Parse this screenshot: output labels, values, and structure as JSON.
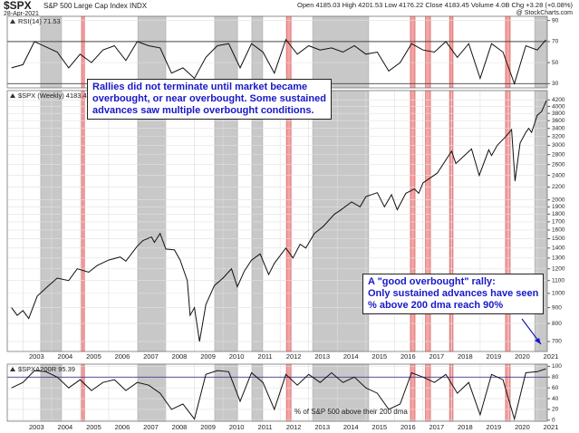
{
  "header": {
    "symbol": "$SPX",
    "name": "S&P 500 Large Cap Index INDX",
    "date": "28-Apr-2021",
    "quote": "Open 4185.03 High 4201.53 Low 4176.22 Close 4183.45 Volume 4.0B Chg +3.28 (+0.08%)",
    "source": "@ StockCharts.com"
  },
  "annotations": [
    {
      "lines": [
        "Rallies did not terminate until market became",
        "overbought, or near overbought. Some sustained",
        "advances saw multiple overbought conditions."
      ]
    },
    {
      "lines": [
        "A \"good overbought\" rally:",
        "Only sustained advances have seen",
        "% above 200 dma reach 90%"
      ]
    }
  ],
  "chart_data": [
    {
      "type": "line",
      "title": "RSI(14) 71.53",
      "color": "#111111",
      "xlim": [
        2002.45,
        2021.35
      ],
      "ylim": [
        26,
        94
      ],
      "yticks": [
        30,
        50,
        70,
        90
      ],
      "reference_lines": [
        70,
        30
      ],
      "x": [
        2002.6,
        2003.0,
        2003.4,
        2003.8,
        2004.2,
        2004.6,
        2005.0,
        2005.4,
        2005.8,
        2006.2,
        2006.6,
        2007.0,
        2007.4,
        2007.8,
        2008.2,
        2008.6,
        2009.0,
        2009.4,
        2009.8,
        2010.2,
        2010.6,
        2011.0,
        2011.4,
        2011.8,
        2012.2,
        2012.6,
        2013.0,
        2013.4,
        2013.8,
        2014.2,
        2014.6,
        2015.0,
        2015.4,
        2015.8,
        2016.2,
        2016.6,
        2017.0,
        2017.4,
        2017.8,
        2018.2,
        2018.6,
        2019.0,
        2019.4,
        2019.8,
        2020.2,
        2020.6,
        2021.0,
        2021.3
      ],
      "values": [
        45,
        48,
        70,
        65,
        60,
        45,
        58,
        50,
        62,
        66,
        52,
        70,
        66,
        64,
        40,
        45,
        35,
        55,
        66,
        68,
        45,
        68,
        60,
        40,
        72,
        58,
        66,
        62,
        64,
        60,
        66,
        58,
        60,
        42,
        50,
        68,
        62,
        60,
        70,
        55,
        68,
        35,
        68,
        60,
        30,
        66,
        62,
        71.53
      ]
    },
    {
      "type": "line",
      "title": "$SPX (Weekly) 4183.45",
      "color": "#111111",
      "yscale": "log",
      "xlim": [
        2002.45,
        2021.35
      ],
      "ylim": [
        650,
        4500
      ],
      "yticks": [
        700,
        800,
        900,
        1000,
        1100,
        1200,
        1300,
        1400,
        1500,
        1600,
        1700,
        1800,
        1900,
        2000,
        2200,
        2400,
        2600,
        2800,
        3000,
        3200,
        3400,
        3600,
        3800,
        4000,
        4200
      ],
      "xticks": [
        2003,
        2004,
        2005,
        2006,
        2007,
        2008,
        2009,
        2010,
        2011,
        2012,
        2013,
        2014,
        2015,
        2016,
        2017,
        2018,
        2019,
        2020,
        2021
      ],
      "shaded": [
        {
          "color": "#c8c8c8",
          "periods": [
            [
              2003.62,
              2004.35
            ],
            [
              2007.02,
              2008.0
            ],
            [
              2009.71,
              2010.51
            ],
            [
              2011.01,
              2011.39
            ],
            [
              2013.14,
              2015.1
            ],
            [
              2020.91,
              2021.32
            ]
          ]
        },
        {
          "color": "#f3a3a3",
          "periods": [
            [
              2005.05,
              2005.15
            ],
            [
              2012.22,
              2012.38
            ],
            [
              2016.56,
              2016.72
            ],
            [
              2017.09,
              2017.26
            ],
            [
              2017.93,
              2018.05
            ],
            [
              2019.89,
              2020.05
            ]
          ]
        }
      ],
      "x": [
        2002.6,
        2002.8,
        2003.0,
        2003.2,
        2003.5,
        2003.9,
        2004.2,
        2004.6,
        2004.9,
        2005.3,
        2005.6,
        2006.0,
        2006.4,
        2006.6,
        2007.0,
        2007.2,
        2007.5,
        2007.6,
        2007.8,
        2008.0,
        2008.3,
        2008.5,
        2008.75,
        2008.85,
        2009.0,
        2009.18,
        2009.4,
        2009.7,
        2010.0,
        2010.3,
        2010.5,
        2010.75,
        2011.0,
        2011.3,
        2011.6,
        2011.8,
        2012.2,
        2012.45,
        2012.7,
        2012.9,
        2013.2,
        2013.5,
        2013.9,
        2014.1,
        2014.5,
        2014.8,
        2015.0,
        2015.4,
        2015.65,
        2015.9,
        2016.1,
        2016.4,
        2016.7,
        2016.85,
        2017.0,
        2017.5,
        2018.0,
        2018.15,
        2018.7,
        2018.97,
        2019.3,
        2019.4,
        2019.6,
        2019.9,
        2020.1,
        2020.22,
        2020.4,
        2020.6,
        2020.7,
        2020.8,
        2021.0,
        2021.15,
        2021.32
      ],
      "values": [
        900,
        850,
        880,
        830,
        980,
        1060,
        1120,
        1100,
        1200,
        1170,
        1230,
        1280,
        1310,
        1270,
        1420,
        1480,
        1520,
        1460,
        1560,
        1390,
        1380,
        1280,
        1100,
        850,
        900,
        700,
        920,
        1060,
        1120,
        1200,
        1050,
        1180,
        1280,
        1340,
        1150,
        1250,
        1400,
        1300,
        1440,
        1400,
        1560,
        1640,
        1800,
        1850,
        1970,
        1900,
        2050,
        2110,
        1900,
        2080,
        1860,
        2100,
        2170,
        2100,
        2270,
        2440,
        2870,
        2620,
        2920,
        2400,
        2900,
        2780,
        3000,
        3200,
        3370,
        2300,
        3050,
        3300,
        3400,
        3300,
        3750,
        3850,
        4183.45
      ]
    },
    {
      "type": "line",
      "title": "$SPXA200R 95.39",
      "subtitle": "% of S&P 500 above their 200 dma",
      "color": "#111111",
      "xlim": [
        2002.45,
        2021.35
      ],
      "ylim": [
        -2,
        104
      ],
      "yticks": [
        0,
        20,
        40,
        60,
        80,
        100
      ],
      "reference_lines": [
        80
      ],
      "xticks": [
        2003,
        2004,
        2005,
        2006,
        2007,
        2008,
        2009,
        2010,
        2011,
        2012,
        2013,
        2014,
        2015,
        2016,
        2017,
        2018,
        2019,
        2020,
        2021
      ],
      "x": [
        2002.6,
        2003.0,
        2003.4,
        2003.8,
        2004.2,
        2004.6,
        2005.0,
        2005.4,
        2005.8,
        2006.2,
        2006.6,
        2007.0,
        2007.4,
        2007.8,
        2008.2,
        2008.6,
        2009.0,
        2009.4,
        2009.8,
        2010.2,
        2010.6,
        2011.0,
        2011.4,
        2011.8,
        2012.2,
        2012.6,
        2013.0,
        2013.4,
        2013.8,
        2014.2,
        2014.6,
        2015.0,
        2015.4,
        2015.8,
        2016.2,
        2016.6,
        2017.0,
        2017.4,
        2017.8,
        2018.2,
        2018.6,
        2019.0,
        2019.4,
        2019.8,
        2020.2,
        2020.6,
        2021.0,
        2021.3
      ],
      "values": [
        60,
        70,
        92,
        90,
        80,
        60,
        75,
        55,
        70,
        75,
        55,
        70,
        65,
        50,
        20,
        30,
        2,
        85,
        92,
        90,
        35,
        88,
        70,
        20,
        85,
        65,
        85,
        70,
        88,
        70,
        80,
        60,
        50,
        20,
        30,
        88,
        80,
        70,
        85,
        50,
        70,
        10,
        85,
        75,
        2,
        88,
        90,
        95.39
      ]
    }
  ]
}
